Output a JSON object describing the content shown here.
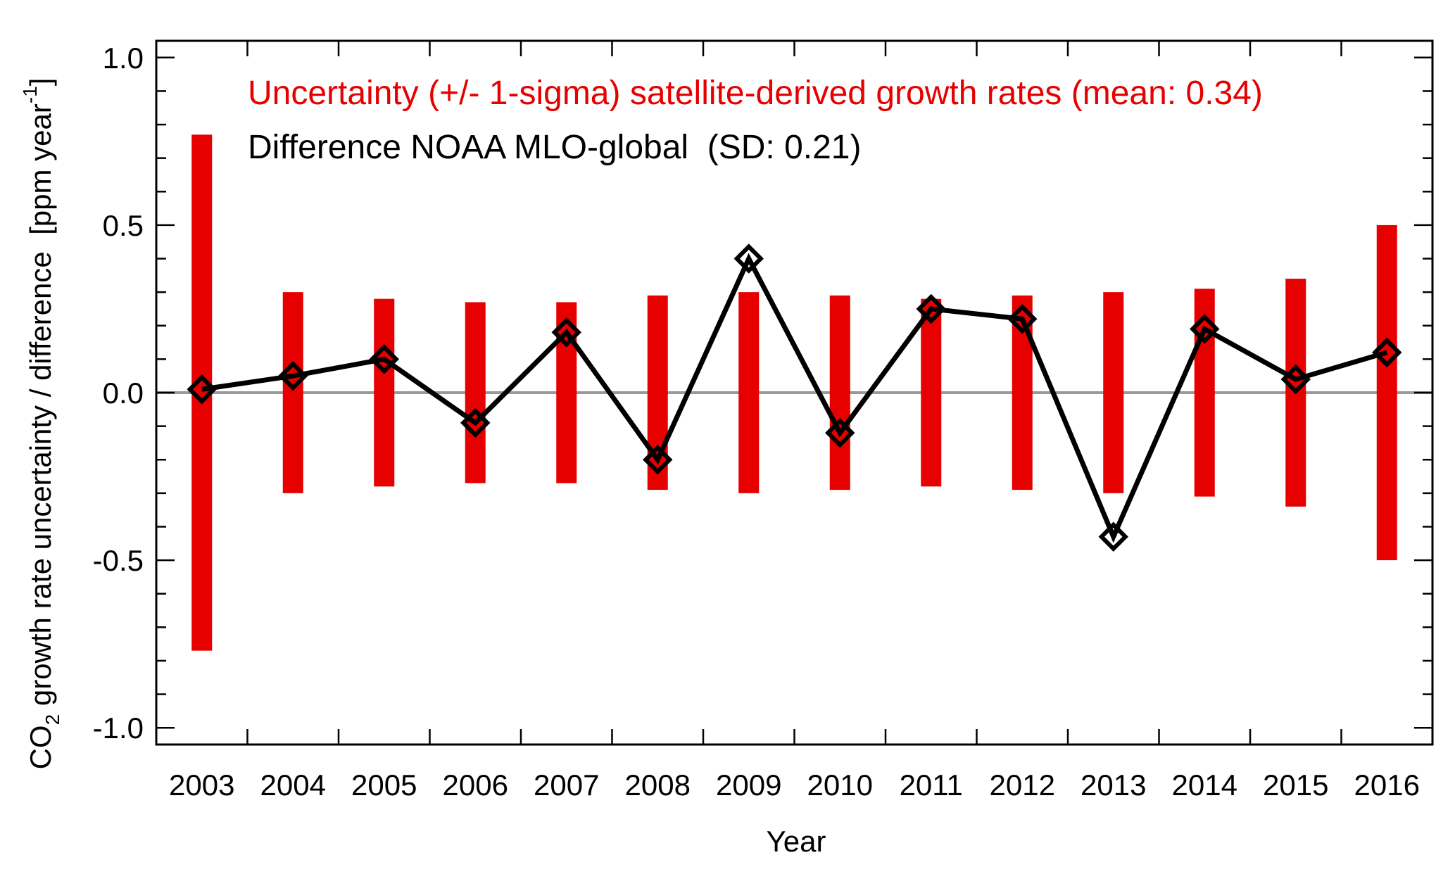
{
  "chart_data": {
    "type": "bar",
    "xlabel": "Year",
    "ylabel": {
      "prefix": "CO",
      "subscript": "2",
      "main": " growth rate uncertainty / difference  [ppm year",
      "superscript": "-1",
      "suffix": "]"
    },
    "ylim": [
      -1.05,
      1.05
    ],
    "y_ticks": [
      1.0,
      0.5,
      0.0,
      -0.5,
      -1.0
    ],
    "y_tick_labels": [
      "1.0",
      "0.5",
      "0.0",
      "-0.5",
      "-1.0"
    ],
    "categories": [
      "2003",
      "2004",
      "2005",
      "2006",
      "2007",
      "2008",
      "2009",
      "2010",
      "2011",
      "2012",
      "2013",
      "2014",
      "2015",
      "2016"
    ],
    "zero_line": true,
    "series": [
      {
        "name": "Uncertainty (+/- 1-sigma) satellite-derived growth rates (mean: 0.34)",
        "kind": "symmetric-bar",
        "color": "#e60000",
        "values": [
          0.77,
          0.3,
          0.28,
          0.27,
          0.27,
          0.29,
          0.3,
          0.29,
          0.28,
          0.29,
          0.3,
          0.31,
          0.34,
          0.5
        ]
      },
      {
        "name": "Difference NOAA MLO-global  (SD: 0.21)",
        "kind": "line-diamond",
        "color": "#000000",
        "values": [
          0.01,
          0.05,
          0.1,
          -0.09,
          0.18,
          -0.2,
          0.4,
          -0.12,
          0.25,
          0.22,
          -0.43,
          0.19,
          0.04,
          0.12
        ]
      }
    ],
    "legend": "top-left inside plot"
  }
}
